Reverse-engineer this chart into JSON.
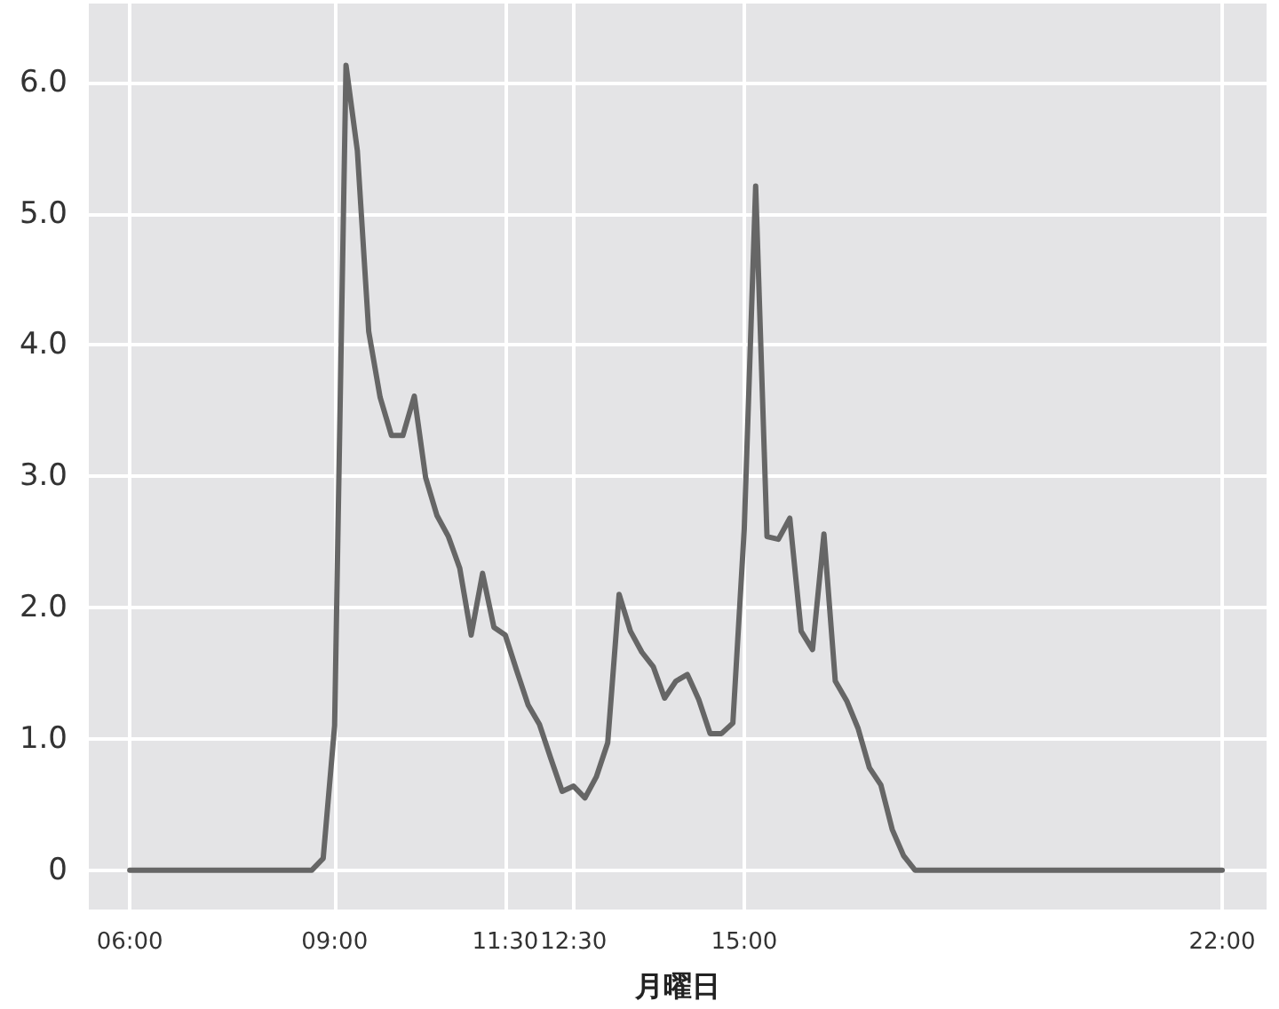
{
  "chart_data": {
    "type": "line",
    "xlabel": "月曜日",
    "x": [
      6,
      8.667,
      8.833,
      9,
      9.167,
      9.333,
      9.5,
      9.667,
      9.833,
      10,
      10.167,
      10.333,
      10.5,
      10.667,
      10.833,
      11,
      11.167,
      11.333,
      11.5,
      11.667,
      11.833,
      12,
      12.167,
      12.333,
      12.5,
      12.667,
      12.833,
      13,
      13.167,
      13.333,
      13.5,
      13.667,
      13.833,
      14,
      14.167,
      14.333,
      14.5,
      14.667,
      14.833,
      15,
      15.167,
      15.333,
      15.5,
      15.667,
      15.833,
      16,
      16.167,
      16.333,
      16.5,
      16.667,
      16.833,
      17,
      17.167,
      17.333,
      17.5,
      22
    ],
    "series": [
      {
        "color": "#666666",
        "values": [
          0,
          0,
          0.09,
          1.1,
          6.13,
          5.48,
          4.1,
          3.6,
          3.31,
          3.31,
          3.61,
          2.99,
          2.7,
          2.54,
          2.3,
          1.79,
          2.26,
          1.85,
          1.79,
          1.52,
          1.26,
          1.11,
          0.85,
          0.6,
          0.64,
          0.55,
          0.71,
          0.97,
          2.1,
          1.82,
          1.66,
          1.55,
          1.31,
          1.44,
          1.49,
          1.3,
          1.04,
          1.04,
          1.12,
          2.6,
          5.21,
          2.54,
          2.52,
          2.68,
          1.82,
          1.68,
          2.56,
          1.44,
          1.29,
          1.08,
          0.78,
          0.65,
          0.31,
          0.11,
          0,
          0
        ]
      }
    ],
    "xlim": [
      5.4,
      22.65
    ],
    "xticks": [
      {
        "value": 6,
        "label": "06:00"
      },
      {
        "value": 9,
        "label": "09:00"
      },
      {
        "value": 11.5,
        "label": "11:30"
      },
      {
        "value": 12.5,
        "label": "12:30"
      },
      {
        "value": 15,
        "label": "15:00"
      },
      {
        "value": 22,
        "label": "22:00"
      }
    ],
    "ylim": [
      -0.3,
      6.6
    ],
    "yticks": [
      {
        "value": 0,
        "label": "0"
      },
      {
        "value": 1,
        "label": "1.0"
      },
      {
        "value": 2,
        "label": "2.0"
      },
      {
        "value": 3,
        "label": "3.0"
      },
      {
        "value": 4,
        "label": "4.0"
      },
      {
        "value": 5,
        "label": "5.0"
      },
      {
        "value": 6,
        "label": "6.0"
      }
    ],
    "grid": true,
    "marker": "none",
    "line_style": "solid"
  }
}
